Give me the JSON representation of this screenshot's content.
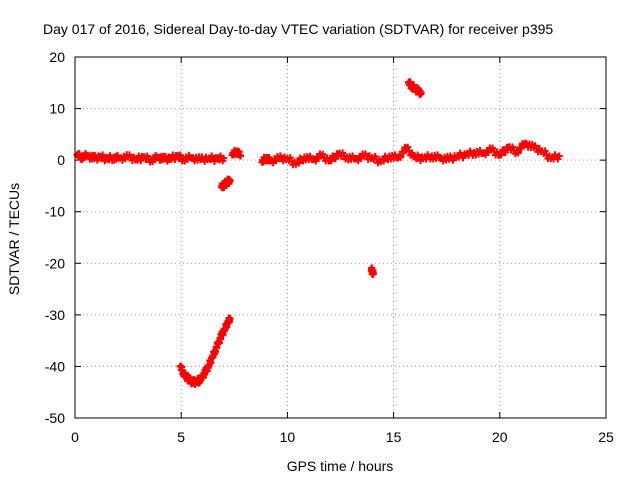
{
  "chart_data": {
    "type": "scatter",
    "title": "Day 017 of 2016, Sidereal Day-to-day VTEC variation (SDTVAR) for receiver p395",
    "xlabel": "GPS time / hours",
    "ylabel": "SDTVAR / TECUs",
    "xlim": [
      0,
      25
    ],
    "ylim": [
      -50,
      20
    ],
    "xticks": [
      0,
      5,
      10,
      15,
      20,
      25
    ],
    "yticks": [
      -50,
      -40,
      -30,
      -20,
      -10,
      0,
      10,
      20
    ],
    "grid": true,
    "marker": "cross",
    "series": [
      {
        "name": "SDTVAR",
        "color": "#ff0000",
        "segments": [
          {
            "x": [
              0.1,
              0.3,
              0.6,
              0.9,
              1.2,
              1.5,
              1.8,
              2.1,
              2.5,
              2.9,
              3.2,
              3.6,
              3.9,
              4.2,
              4.5,
              4.8,
              5.1,
              5.5,
              5.9,
              6.3,
              6.7,
              7.0
            ],
            "y": [
              1.0,
              0.6,
              0.9,
              0.3,
              0.7,
              0.2,
              0.5,
              0.4,
              0.6,
              0.2,
              0.5,
              0.1,
              0.6,
              0.2,
              0.4,
              0.7,
              0.3,
              0.5,
              0.1,
              0.4,
              0.2,
              0.4
            ]
          },
          {
            "x": [
              7.4,
              7.6,
              7.8
            ],
            "y": [
              1.0,
              1.8,
              0.8
            ]
          },
          {
            "x": [
              6.9,
              7.0,
              7.1,
              7.2,
              7.3
            ],
            "y": [
              -5.2,
              -4.8,
              -4.5,
              -4.2,
              -3.9
            ]
          },
          {
            "x": [
              4.95,
              5.1,
              5.25,
              5.4,
              5.55,
              5.7,
              5.85,
              6.0,
              6.15,
              6.3,
              6.45,
              6.6,
              6.75,
              6.9,
              7.05,
              7.2,
              7.3
            ],
            "y": [
              -40,
              -41.2,
              -42.1,
              -42.7,
              -43.0,
              -43.0,
              -42.7,
              -42.0,
              -41.0,
              -39.8,
              -38.4,
              -36.9,
              -35.4,
              -34.0,
              -32.7,
              -31.5,
              -30.7
            ]
          },
          {
            "x": [
              8.8,
              9.0,
              9.2,
              9.6,
              10.0,
              10.4,
              10.8,
              11.2,
              11.6,
              12.0,
              12.4,
              12.8,
              13.2,
              13.6,
              14.0,
              14.4,
              14.8,
              15.2,
              15.6,
              16.0,
              16.4,
              16.8,
              17.2,
              17.6,
              18.0,
              18.4,
              18.8,
              19.2,
              19.6,
              20.0,
              20.4,
              20.8,
              21.2,
              21.6,
              22.0,
              22.4,
              22.8
            ],
            "y": [
              -0.4,
              0.5,
              -0.2,
              0.3,
              0.4,
              -0.8,
              0.6,
              0.1,
              0.8,
              -0.1,
              1.2,
              0.6,
              0.2,
              0.8,
              0.5,
              -0.3,
              0.8,
              0.4,
              2.3,
              0.6,
              0.3,
              0.8,
              0.4,
              0.2,
              0.8,
              1.0,
              1.5,
              1.3,
              2.0,
              1.0,
              2.5,
              1.6,
              3.3,
              2.4,
              1.8,
              0.3,
              0.8
            ]
          },
          {
            "x": [
              13.95,
              14.0,
              14.05
            ],
            "y": [
              -21.2,
              -21.6,
              -22.0
            ]
          },
          {
            "x": [
              15.7,
              15.85,
              16.0,
              16.15,
              16.3
            ],
            "y": [
              15.0,
              14.4,
              13.9,
              13.4,
              13.0
            ]
          }
        ]
      }
    ]
  }
}
